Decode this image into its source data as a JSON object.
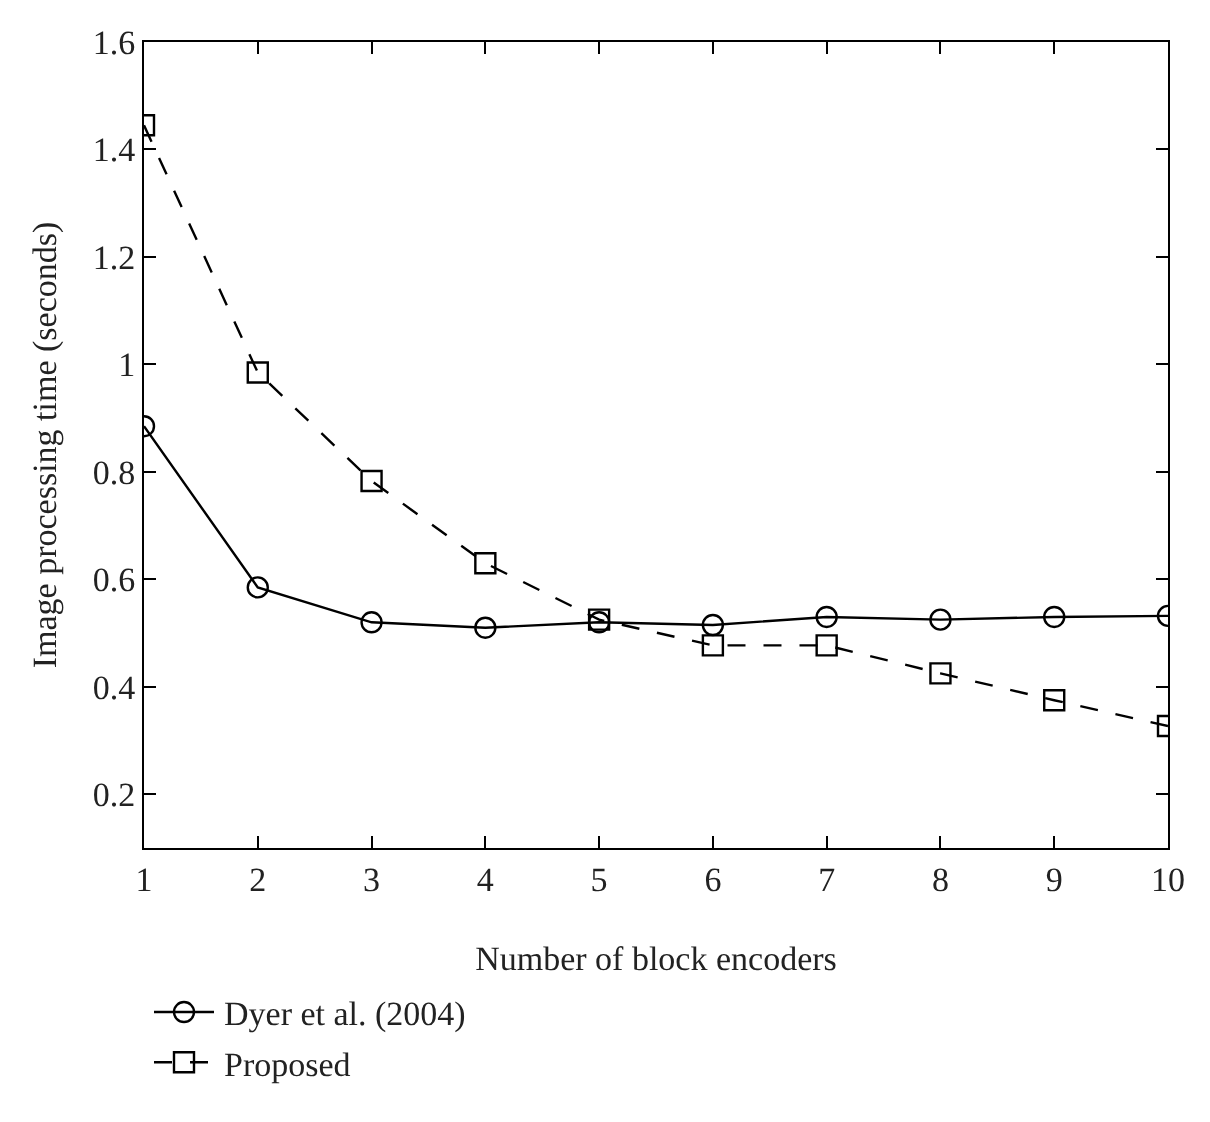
{
  "chart_data": {
    "type": "line",
    "xlabel": "Number of block encoders",
    "ylabel": "Image processing time (seconds)",
    "x": [
      1,
      2,
      3,
      4,
      5,
      6,
      7,
      8,
      9,
      10
    ],
    "series": [
      {
        "name": "Dyer et al. (2004)",
        "color": "#000000",
        "marker": "circle",
        "line_style": "solid",
        "values": [
          0.885,
          0.585,
          0.52,
          0.51,
          0.52,
          0.515,
          0.53,
          0.525,
          0.53,
          0.532
        ]
      },
      {
        "name": "Proposed",
        "color": "#000000",
        "marker": "square",
        "line_style": "dashed",
        "values": [
          1.445,
          0.985,
          0.783,
          0.63,
          0.525,
          0.477,
          0.477,
          0.425,
          0.375,
          0.327
        ]
      }
    ],
    "xlim": [
      1,
      10
    ],
    "xticks": [
      1,
      2,
      3,
      4,
      5,
      6,
      7,
      8,
      9,
      10
    ],
    "ylim": [
      0.1,
      1.6
    ],
    "yticks": [
      0.2,
      0.4,
      0.6,
      0.8,
      1,
      1.2,
      1.4,
      1.6
    ],
    "grid": false,
    "legend": "bottom left"
  }
}
